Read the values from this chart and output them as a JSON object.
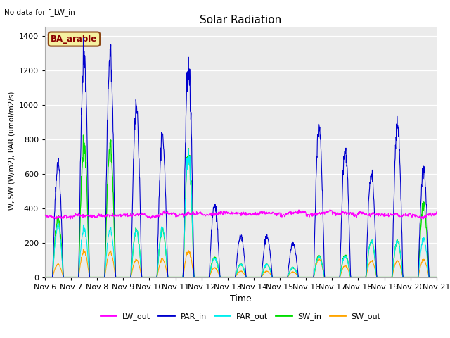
{
  "title": "Solar Radiation",
  "note": "No data for f_LW_in",
  "site_label": "BA_arable",
  "ylabel": "LW, SW (W/m2), PAR (umol/m2/s)",
  "xlabel": "Time",
  "ylim": [
    0,
    1450
  ],
  "yticks": [
    0,
    200,
    400,
    600,
    800,
    1000,
    1200,
    1400
  ],
  "colors": {
    "LW_out": "#ff00ff",
    "PAR_in": "#0000cd",
    "PAR_out": "#00eeee",
    "SW_in": "#00dd00",
    "SW_out": "#ffa500"
  },
  "x_tick_labels": [
    "Nov 6",
    "Nov 7",
    "Nov 8",
    "Nov 9",
    "Nov 10",
    "Nov 11",
    "Nov 12",
    "Nov 13",
    "Nov 14",
    "Nov 15",
    "Nov 16",
    "Nov 17",
    "Nov 18",
    "Nov 19",
    "Nov 20",
    "Nov 21"
  ],
  "bg_color": "#ebebeb",
  "fig_bg": "#ffffff",
  "n_days": 15,
  "pts_per_day": 96,
  "par_in_peaks": [
    660,
    1280,
    1280,
    975,
    820,
    1230,
    420,
    240,
    240,
    195,
    880,
    730,
    600,
    890,
    620
  ],
  "par_out_peaks": [
    300,
    280,
    275,
    270,
    285,
    715,
    110,
    75,
    75,
    55,
    120,
    120,
    210,
    210,
    220
  ],
  "sw_in_peaks": [
    340,
    760,
    755,
    270,
    280,
    720,
    115,
    75,
    75,
    55,
    125,
    125,
    210,
    210,
    420
  ],
  "sw_out_peaks": [
    75,
    150,
    145,
    100,
    105,
    150,
    55,
    35,
    35,
    30,
    105,
    65,
    95,
    95,
    100
  ],
  "lw_out_mean": 365,
  "lw_out_noise": 18,
  "lw_out_trend": [
    -15,
    -10,
    -8,
    -5,
    -3,
    0,
    2,
    3,
    5,
    5,
    5,
    3,
    0,
    -5,
    -8
  ]
}
